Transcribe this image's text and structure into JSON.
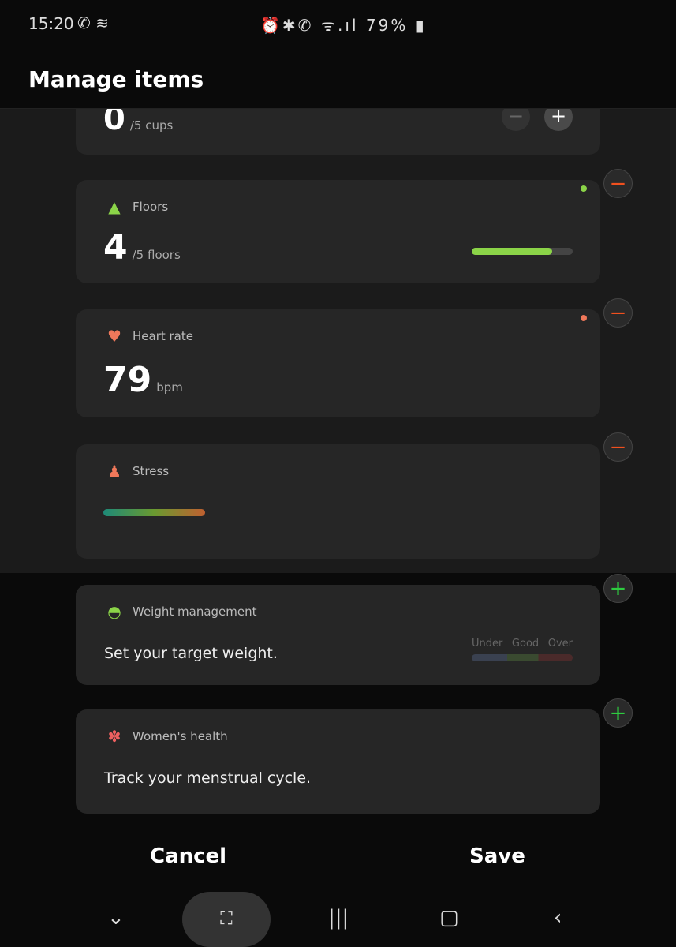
{
  "status": {
    "time": "15:20",
    "left_icons": [
      "whatsapp-icon",
      "swiftkey-icon"
    ],
    "right_icons": [
      "alarm-icon",
      "bluetooth-icon",
      "wifi-calling-icon",
      "wifi-icon",
      "signal-icon"
    ],
    "battery": "79%"
  },
  "header": {
    "title": "Manage items"
  },
  "water": {
    "value": "0",
    "unit": "/5 cups"
  },
  "floors": {
    "title": "Floors",
    "value": "4",
    "unit": "/5 floors",
    "progress": 0.8,
    "color": "#8bd448"
  },
  "heart": {
    "title": "Heart rate",
    "value": "79",
    "unit": "bpm",
    "color": "#f0785a"
  },
  "stress": {
    "title": "Stress"
  },
  "weight": {
    "title": "Weight management",
    "desc": "Set your target weight.",
    "under": "Under",
    "good": "Good",
    "over": "Over"
  },
  "women": {
    "title": "Women's health",
    "desc": "Track your menstrual cycle."
  },
  "footer": {
    "cancel": "Cancel",
    "save": "Save"
  }
}
